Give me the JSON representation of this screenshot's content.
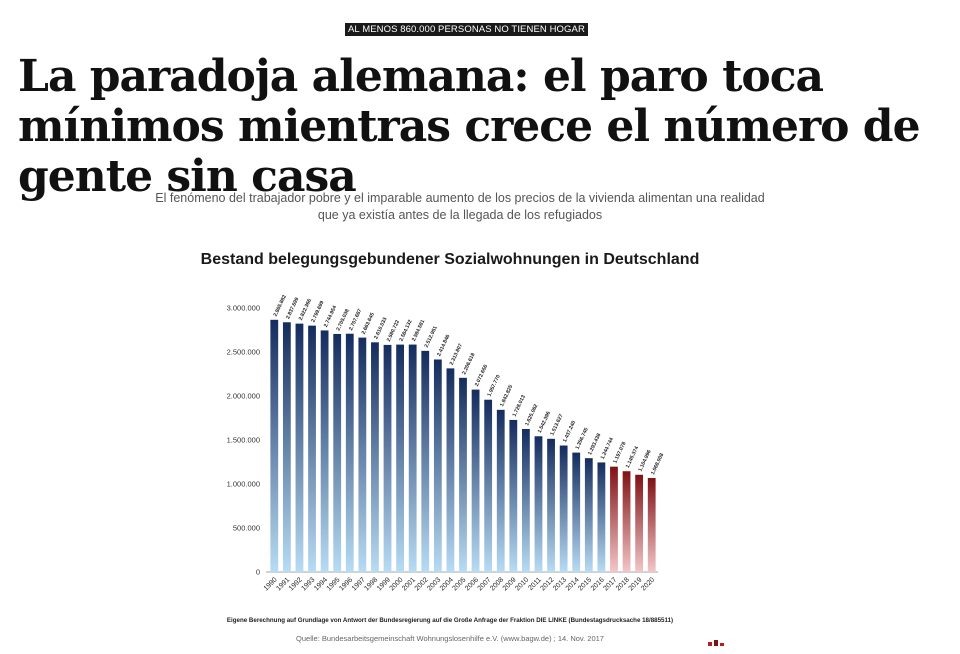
{
  "article": {
    "kicker": "AL MENOS 860.000 PERSONAS NO TIENEN HOGAR",
    "headline": "La paradoja alemana: el paro toca mínimos mientras crece el número de gente sin casa",
    "subtitle": "El fenómeno del trabajador pobre y el imparable aumento de los precios de la vivienda alimentan una realidad que ya existía antes de la llegada de los refugiados"
  },
  "chart_data": {
    "type": "bar",
    "title": "Bestand belegungsgebundener Sozialwohnungen in Deutschland",
    "xlabel": "",
    "ylabel": "",
    "ylim": [
      0,
      3000000
    ],
    "yticks": [
      0,
      500000,
      1000000,
      1500000,
      2000000,
      2500000,
      3000000
    ],
    "ytick_labels": [
      "0",
      "500.000",
      "1.000.000",
      "1.500.000",
      "2.000.000",
      "2.500.000",
      "3.000.000"
    ],
    "grid": false,
    "categories": [
      "1990",
      "1991",
      "1992",
      "1993",
      "1994",
      "1995",
      "1996",
      "1997",
      "1998",
      "1999",
      "2000",
      "2001",
      "2002",
      "2003",
      "2004",
      "2005",
      "2006",
      "2007",
      "2008",
      "2009",
      "2010",
      "2011",
      "2012",
      "2013",
      "2014",
      "2015",
      "2016",
      "2017",
      "2018",
      "2019",
      "2020"
    ],
    "values": [
      2865882,
      2837699,
      2822366,
      2799699,
      2744954,
      2705038,
      2707687,
      2663645,
      2610033,
      2580722,
      2584132,
      2584581,
      2512951,
      2414846,
      2313807,
      2206618,
      2072656,
      1957770,
      1842825,
      1728013,
      1625062,
      1542396,
      1513627,
      1437240,
      1356745,
      1293438,
      1244744,
      1197078,
      1145374,
      1104996,
      1068008
    ],
    "data_labels": [
      "2.865.882",
      "2.837.699",
      "2.822.366",
      "2.799.699",
      "2.744.954",
      "2.705.038",
      "2.707.687",
      "2.663.645",
      "2.610.033",
      "2.580.722",
      "2.584.132",
      "2.584.581",
      "2.512.951",
      "2.414.846",
      "2.313.807",
      "2.206.618",
      "2.072.656",
      "1.957.770",
      "1.842.825",
      "1.728.013",
      "1.625.062",
      "1.542.396",
      "1.513.627",
      "1.437.240",
      "1.356.745",
      "1.293.438",
      "1.244.744",
      "1.197.078",
      "1.145.374",
      "1.104.996",
      "1.068.008"
    ],
    "projected_from_index": 27,
    "colors": {
      "actual_top": "#152c5e",
      "actual_bottom": "#b8dcf4",
      "projected_top": "#7f1215",
      "projected_bottom": "#f3c6c8",
      "axis": "#888888"
    },
    "footnote": "Eigene Berechnung auf Grundlage von Antwort der Bundesregierung auf die Große Anfrage der Fraktion DIE LINKE (Bundestagsdrucksache 18/885511)",
    "source": "Quelle: Bundesarbeitsgemeinschaft Wohnungslosenhilfe e.V. (www.bagw.de) ; 14. Nov. 2017"
  }
}
